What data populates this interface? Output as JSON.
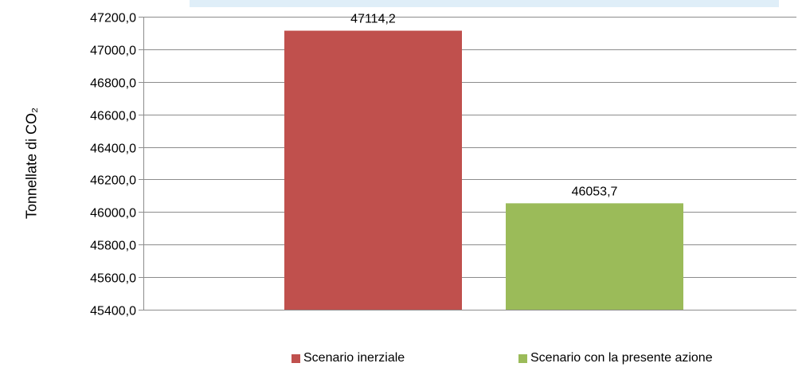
{
  "chart_data": {
    "type": "bar",
    "title": "",
    "xlabel": "",
    "ylabel": "Tonnellate di CO₂",
    "ylim": [
      45400,
      47200
    ],
    "yticks": [
      45400,
      45600,
      45800,
      46000,
      46200,
      46400,
      46600,
      46800,
      47000,
      47200
    ],
    "ytick_labels": [
      "45400,0",
      "45600,0",
      "45800,0",
      "46000,0",
      "46200,0",
      "46400,0",
      "46600,0",
      "46800,0",
      "47000,0",
      "47200,0"
    ],
    "grid": true,
    "legend_position": "bottom",
    "series": [
      {
        "name": "Scenario inerziale",
        "value": 47114.2,
        "label": "47114,2",
        "color": "#c0504d"
      },
      {
        "name": "Scenario con la presente azione",
        "value": 46053.7,
        "label": "46053,7",
        "color": "#9bbb59"
      }
    ]
  }
}
